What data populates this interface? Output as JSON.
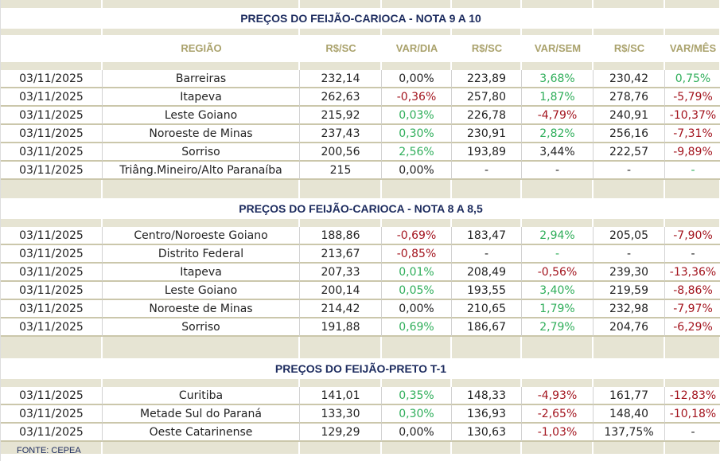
{
  "headers": [
    "",
    "REGIÃO",
    "R$/SC",
    "VAR/DIA",
    "R$/SC",
    "VAR/SEM",
    "R$/SC",
    "VAR/MÊS"
  ],
  "sections": [
    {
      "title": "PREÇOS DO FEIJÃO-CARIOCA - NOTA 9 A 10",
      "show_header": true,
      "rows": [
        {
          "cells": [
            "03/11/2025",
            "Barreiras",
            "232,14",
            "0,00%",
            "223,89",
            "3,68%",
            "230,42",
            "0,75%"
          ],
          "tones": [
            "k",
            "k",
            "k",
            "k",
            "k",
            "g",
            "k",
            "g"
          ]
        },
        {
          "cells": [
            "03/11/2025",
            "Itapeva",
            "262,63",
            "-0,36%",
            "257,80",
            "1,87%",
            "278,76",
            "-5,79%"
          ],
          "tones": [
            "k",
            "k",
            "k",
            "r",
            "k",
            "g",
            "k",
            "r"
          ]
        },
        {
          "cells": [
            "03/11/2025",
            "Leste Goiano",
            "215,92",
            "0,03%",
            "226,78",
            "-4,79%",
            "240,91",
            "-10,37%"
          ],
          "tones": [
            "k",
            "k",
            "k",
            "g",
            "k",
            "r",
            "k",
            "r"
          ]
        },
        {
          "cells": [
            "03/11/2025",
            "Noroeste de Minas",
            "237,43",
            "0,30%",
            "230,91",
            "2,82%",
            "256,16",
            "-7,31%"
          ],
          "tones": [
            "k",
            "k",
            "k",
            "g",
            "k",
            "g",
            "k",
            "r"
          ]
        },
        {
          "cells": [
            "03/11/2025",
            "Sorriso",
            "200,56",
            "2,56%",
            "193,89",
            "3,44%",
            "222,57",
            "-9,89%"
          ],
          "tones": [
            "k",
            "k",
            "k",
            "g",
            "k",
            "k",
            "k",
            "r"
          ]
        },
        {
          "cells": [
            "03/11/2025",
            "Triâng.Mineiro/Alto Paranaíba",
            "215",
            "0,00%",
            "-",
            "-",
            "-",
            "-"
          ],
          "tones": [
            "k",
            "k",
            "k",
            "k",
            "k",
            "k",
            "k",
            "g"
          ]
        }
      ]
    },
    {
      "title": "PREÇOS DO FEIJÃO-CARIOCA - NOTA 8 A 8,5",
      "show_header": false,
      "rows": [
        {
          "cells": [
            "03/11/2025",
            "Centro/Noroeste Goiano",
            "188,86",
            "-0,69%",
            "183,47",
            "2,94%",
            "205,05",
            "-7,90%"
          ],
          "tones": [
            "k",
            "k",
            "k",
            "r",
            "k",
            "g",
            "k",
            "r"
          ]
        },
        {
          "cells": [
            "03/11/2025",
            "Distrito Federal",
            "213,67",
            "-0,85%",
            "-",
            "-",
            "-",
            "-"
          ],
          "tones": [
            "k",
            "k",
            "k",
            "r",
            "k",
            "g",
            "k",
            "k"
          ]
        },
        {
          "cells": [
            "03/11/2025",
            "Itapeva",
            "207,33",
            "0,01%",
            "208,49",
            "-0,56%",
            "239,30",
            "-13,36%"
          ],
          "tones": [
            "k",
            "k",
            "k",
            "g",
            "k",
            "r",
            "k",
            "r"
          ]
        },
        {
          "cells": [
            "03/11/2025",
            "Leste Goiano",
            "200,14",
            "0,05%",
            "193,55",
            "3,40%",
            "219,59",
            "-8,86%"
          ],
          "tones": [
            "k",
            "k",
            "k",
            "g",
            "k",
            "g",
            "k",
            "r"
          ]
        },
        {
          "cells": [
            "03/11/2025",
            "Noroeste de Minas",
            "214,42",
            "0,00%",
            "210,65",
            "1,79%",
            "232,98",
            "-7,97%"
          ],
          "tones": [
            "k",
            "k",
            "k",
            "k",
            "k",
            "g",
            "k",
            "r"
          ]
        },
        {
          "cells": [
            "03/11/2025",
            "Sorriso",
            "191,88",
            "0,69%",
            "186,67",
            "2,79%",
            "204,76",
            "-6,29%"
          ],
          "tones": [
            "k",
            "k",
            "k",
            "g",
            "k",
            "g",
            "k",
            "r"
          ]
        }
      ]
    },
    {
      "title": "PREÇOS DO  FEIJÃO-PRETO  T-1",
      "show_header": false,
      "rows": [
        {
          "cells": [
            "03/11/2025",
            "Curitiba",
            "141,01",
            "0,35%",
            "148,33",
            "-4,93%",
            "161,77",
            "-12,83%"
          ],
          "tones": [
            "k",
            "k",
            "k",
            "g",
            "k",
            "r",
            "k",
            "r"
          ]
        },
        {
          "cells": [
            "03/11/2025",
            "Metade Sul do Paraná",
            "133,30",
            "0,30%",
            "136,93",
            "-2,65%",
            "148,40",
            "-10,18%"
          ],
          "tones": [
            "k",
            "k",
            "k",
            "g",
            "k",
            "r",
            "k",
            "r"
          ]
        },
        {
          "cells": [
            "03/11/2025",
            "Oeste Catarinense",
            "129,29",
            "0,00%",
            "130,63",
            "-1,03%",
            "137,75%",
            "-"
          ],
          "tones": [
            "k",
            "k",
            "k",
            "k",
            "k",
            "r",
            "k",
            "k"
          ]
        }
      ]
    }
  ],
  "footer": "FONTE: CEPEA"
}
